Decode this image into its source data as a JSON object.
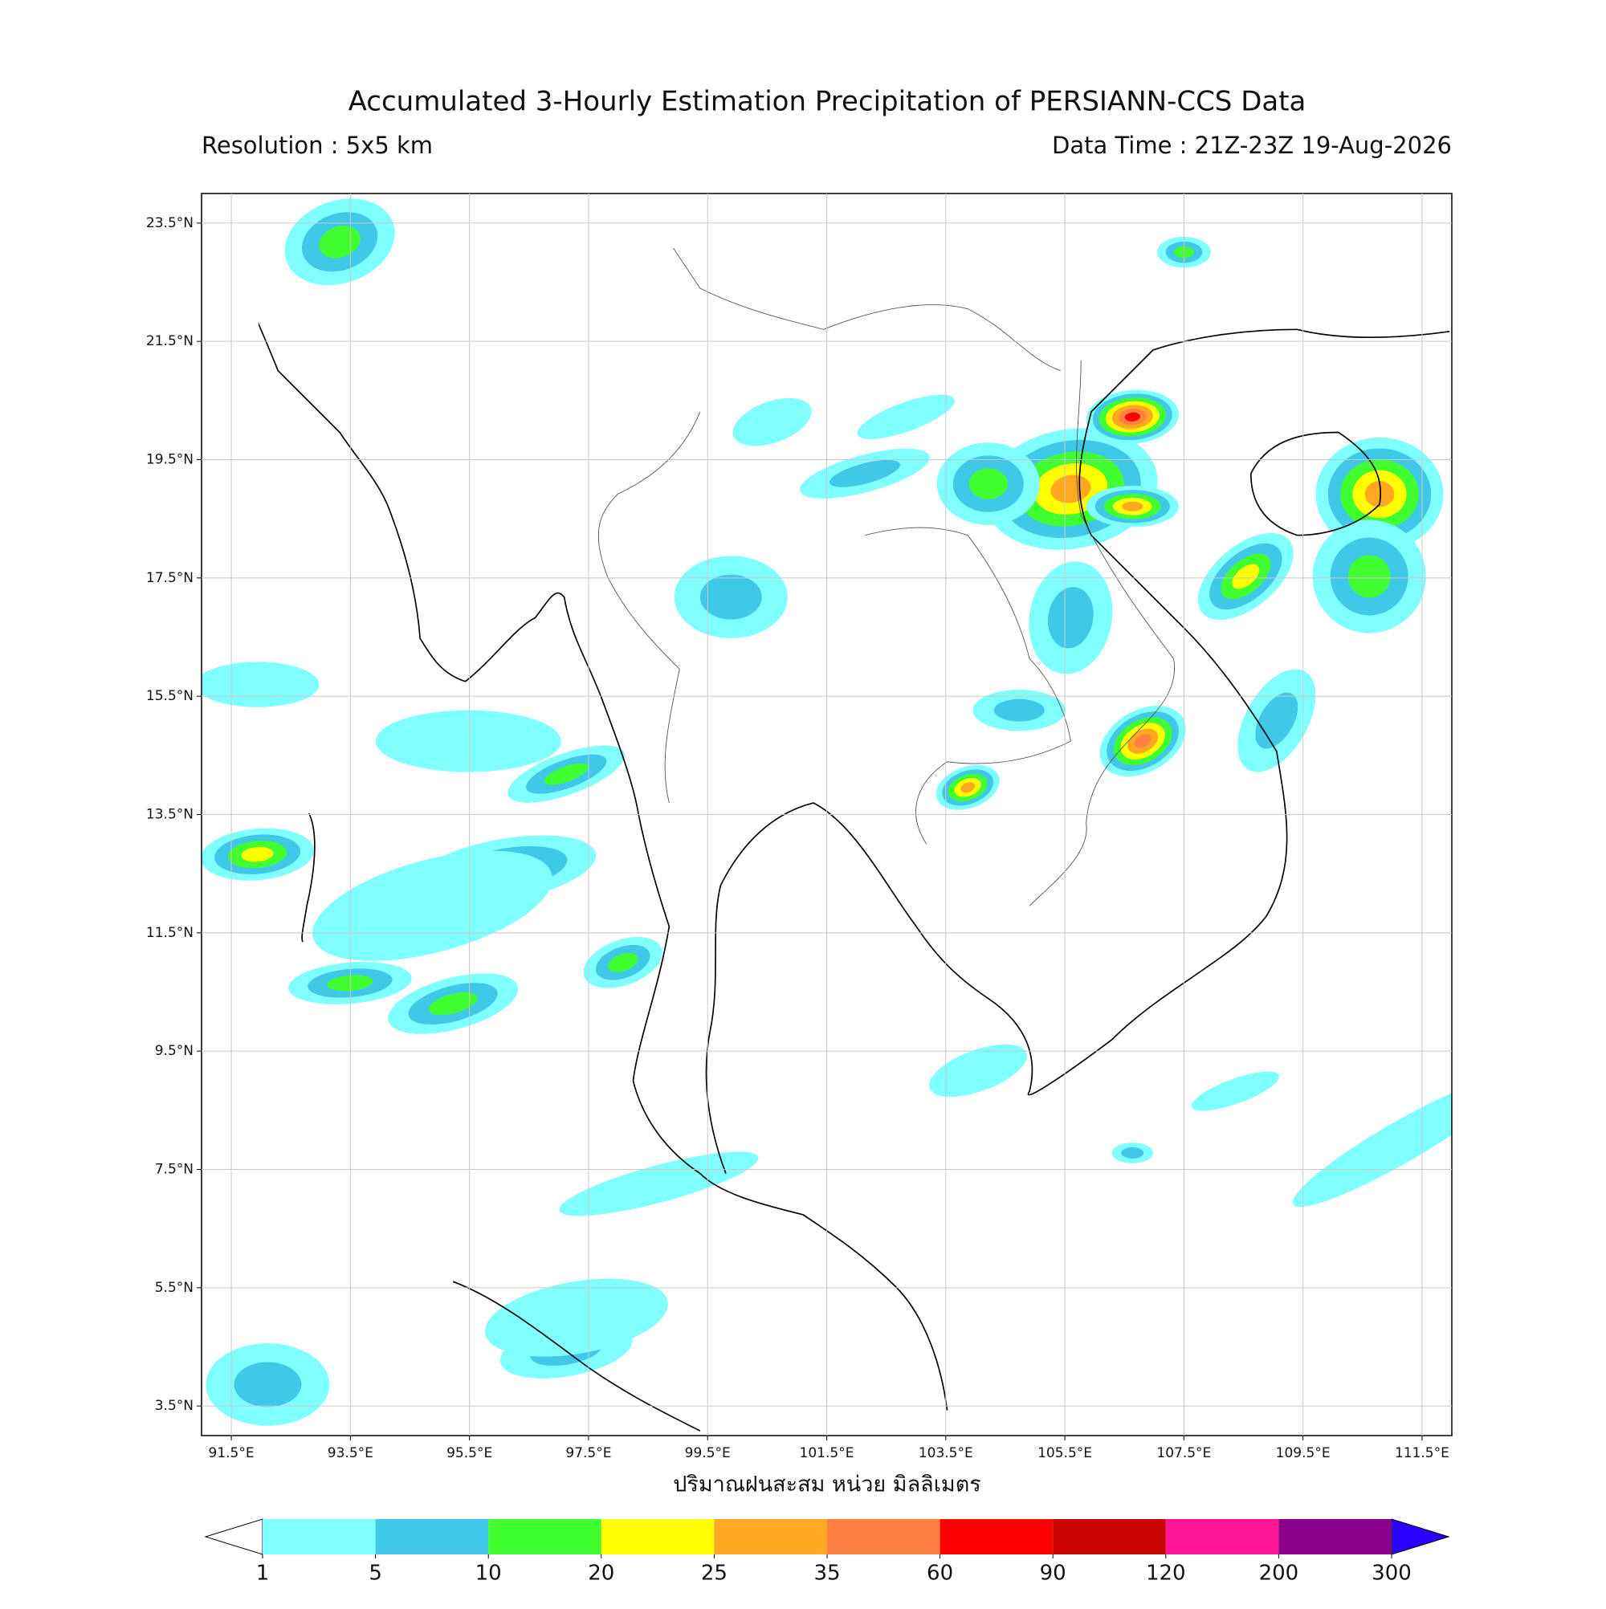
{
  "chart_data": {
    "type": "map",
    "title": "Accumulated 3-Hourly Estimation Precipitation of PERSIANN-CCS Data",
    "subtitle_left": "Resolution : 5x5 km",
    "subtitle_right": "Data Time : 21Z-23Z 19-Aug-2026",
    "xlabel": "ปริมาณฝนสะสม หน่วย มิลลิเมตร",
    "xlim": [
      91,
      112
    ],
    "ylim": [
      3,
      24
    ],
    "grid": true,
    "xticks": [
      {
        "value": 91.5,
        "label": "91.5°E"
      },
      {
        "value": 93.5,
        "label": "93.5°E"
      },
      {
        "value": 95.5,
        "label": "95.5°E"
      },
      {
        "value": 97.5,
        "label": "97.5°E"
      },
      {
        "value": 99.5,
        "label": "99.5°E"
      },
      {
        "value": 101.5,
        "label": "101.5°E"
      },
      {
        "value": 103.5,
        "label": "103.5°E"
      },
      {
        "value": 105.5,
        "label": "105.5°E"
      },
      {
        "value": 107.5,
        "label": "107.5°E"
      },
      {
        "value": 109.5,
        "label": "109.5°E"
      },
      {
        "value": 111.5,
        "label": "111.5°E"
      }
    ],
    "yticks": [
      {
        "value": 3.5,
        "label": "3.5°N"
      },
      {
        "value": 5.5,
        "label": "5.5°N"
      },
      {
        "value": 7.5,
        "label": "7.5°N"
      },
      {
        "value": 9.5,
        "label": "9.5°N"
      },
      {
        "value": 11.5,
        "label": "11.5°N"
      },
      {
        "value": 13.5,
        "label": "13.5°N"
      },
      {
        "value": 15.5,
        "label": "15.5°N"
      },
      {
        "value": 17.5,
        "label": "17.5°N"
      },
      {
        "value": 19.5,
        "label": "19.5°N"
      },
      {
        "value": 21.5,
        "label": "21.5°N"
      },
      {
        "value": 23.5,
        "label": "23.5°N"
      }
    ],
    "colorbar": {
      "levels": [
        1,
        5,
        10,
        20,
        25,
        35,
        60,
        90,
        120,
        200,
        300
      ],
      "colors": [
        "#80ffff",
        "#40c8e8",
        "#40ff30",
        "#ffff00",
        "#ffa820",
        "#ff8040",
        "#ff0000",
        "#c80000",
        "#ff1493",
        "#8b008b"
      ],
      "under_color": "#ffffff",
      "over_color": "#2a00ff"
    }
  }
}
